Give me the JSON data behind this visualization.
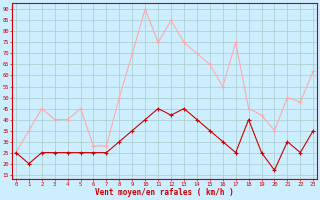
{
  "x": [
    0,
    1,
    2,
    3,
    4,
    5,
    6,
    7,
    8,
    9,
    10,
    11,
    12,
    13,
    14,
    15,
    16,
    17,
    18,
    19,
    20,
    21,
    22,
    23
  ],
  "avg_wind": [
    25,
    20,
    25,
    25,
    25,
    25,
    25,
    25,
    30,
    35,
    40,
    45,
    42,
    45,
    40,
    35,
    30,
    25,
    40,
    25,
    17,
    30,
    25,
    35
  ],
  "gust_wind": [
    25,
    35,
    45,
    40,
    40,
    45,
    28,
    28,
    50,
    70,
    90,
    75,
    85,
    75,
    70,
    65,
    55,
    75,
    45,
    42,
    35,
    50,
    48,
    62
  ],
  "avg_color": "#cc0000",
  "gust_color": "#ffaaaa",
  "bg_color": "#cceeff",
  "grid_color": "#aacccc",
  "spine_color": "#cc0000",
  "xlabel": "Vent moyen/en rafales ( km/h )",
  "xlabel_color": "#cc0000",
  "tick_color": "#cc0000",
  "ylabel_ticks": [
    15,
    20,
    25,
    30,
    35,
    40,
    45,
    50,
    55,
    60,
    65,
    70,
    75,
    80,
    85,
    90
  ],
  "ylim": [
    13,
    93
  ],
  "xlim": [
    -0.3,
    23.3
  ],
  "figwidth": 3.2,
  "figheight": 2.0,
  "dpi": 100
}
